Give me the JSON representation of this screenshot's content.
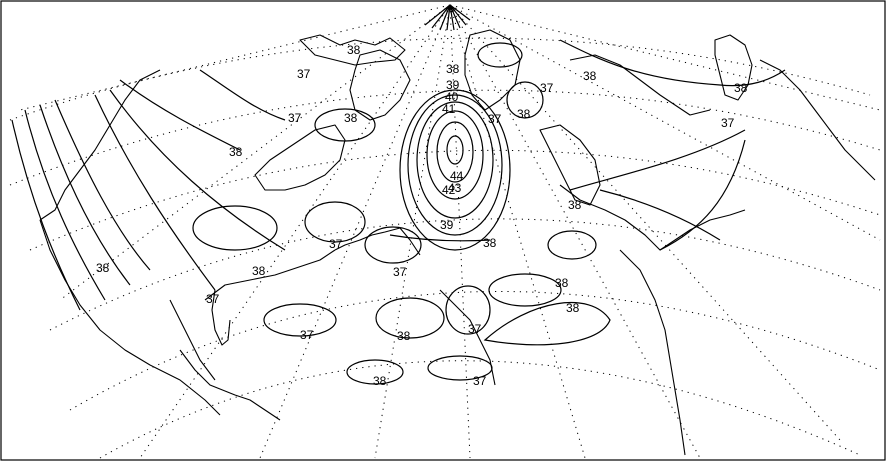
{
  "map": {
    "contour_labels": {
      "c38_n1": "38",
      "c37_n1": "37",
      "c37_n2": "37",
      "c38_n2": "38",
      "c38_n3": "38",
      "c38_w1": "38",
      "c37_w1": "37",
      "c38_w2": "38",
      "c39_top": "39",
      "c40": "40",
      "c41": "41",
      "c43": "43",
      "c44": "44",
      "c42": "42",
      "c39_bottom": "39",
      "c38_center": "38",
      "c37_center": "37",
      "c38_lakes": "38",
      "c37_n3": "37",
      "c38_n4": "38",
      "c38_ne": "38",
      "c37_ne": "37",
      "c38_e": "38",
      "c37_s1": "37",
      "c38_s1": "38",
      "c37_s2": "37",
      "c38_s2": "38",
      "c38_s3": "38",
      "c38_s4": "38",
      "c37_s3": "37",
      "c37_main": "37"
    }
  }
}
